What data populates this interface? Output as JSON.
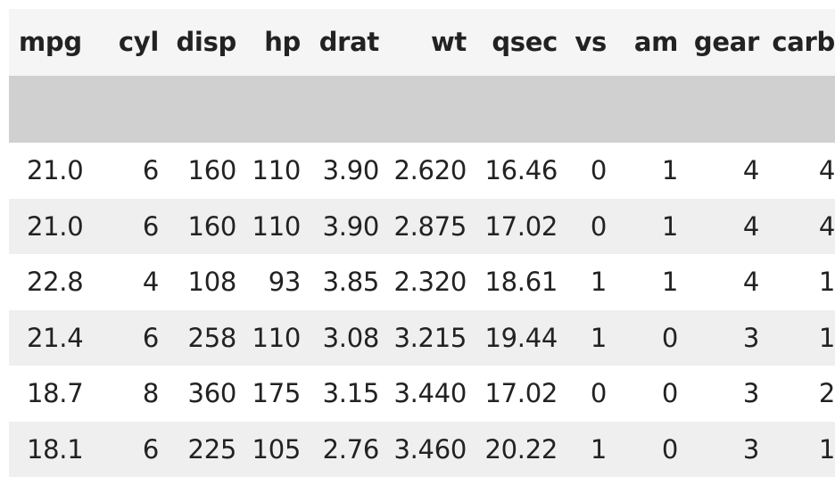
{
  "table": {
    "columns": [
      "mpg",
      "cyl",
      "disp",
      "hp",
      "drat",
      "wt",
      "qsec",
      "vs",
      "am",
      "gear",
      "carb"
    ],
    "rows": [
      [
        "21.0",
        "6",
        "160",
        "110",
        "3.90",
        "2.620",
        "16.46",
        "0",
        "1",
        "4",
        "4"
      ],
      [
        "21.0",
        "6",
        "160",
        "110",
        "3.90",
        "2.875",
        "17.02",
        "0",
        "1",
        "4",
        "4"
      ],
      [
        "22.8",
        "4",
        "108",
        "93",
        "3.85",
        "2.320",
        "18.61",
        "1",
        "1",
        "4",
        "1"
      ],
      [
        "21.4",
        "6",
        "258",
        "110",
        "3.08",
        "3.215",
        "19.44",
        "1",
        "0",
        "3",
        "1"
      ],
      [
        "18.7",
        "8",
        "360",
        "175",
        "3.15",
        "3.440",
        "17.02",
        "0",
        "0",
        "3",
        "2"
      ],
      [
        "18.1",
        "6",
        "225",
        "105",
        "2.76",
        "3.460",
        "20.22",
        "1",
        "0",
        "3",
        "1"
      ]
    ]
  },
  "colors": {
    "header_bg": "#f5f5f5",
    "stripe_bg": "#efefef",
    "divider": "#d0d0d0",
    "text": "#222222"
  }
}
